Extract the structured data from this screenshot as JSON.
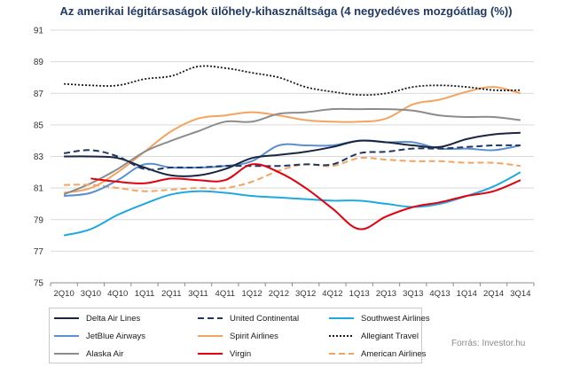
{
  "chart_data": {
    "type": "line",
    "title": "Az amerikai légitársaságok ülőhely-kihasználtsága (4 negyedéves mozgóátlag (%))",
    "xlabel": "",
    "ylabel": "",
    "ylim": [
      75,
      91
    ],
    "yticks": [
      75,
      77,
      79,
      81,
      83,
      85,
      87,
      89,
      91
    ],
    "grid": "horizontal",
    "legend_position": "bottom",
    "categories": [
      "2Q10",
      "3Q10",
      "4Q10",
      "1Q11",
      "2Q11",
      "3Q11",
      "4Q11",
      "1Q12",
      "2Q12",
      "3Q12",
      "4Q12",
      "1Q13",
      "2Q13",
      "3Q13",
      "4Q13",
      "1Q14",
      "2Q14",
      "3Q14"
    ],
    "series": [
      {
        "name": "Delta Air Lines",
        "color": "#1a2540",
        "dash": "solid",
        "values": [
          83.0,
          83.0,
          82.9,
          82.3,
          81.8,
          81.8,
          82.2,
          82.9,
          83.1,
          83.3,
          83.6,
          84.0,
          83.9,
          83.7,
          83.6,
          84.1,
          84.4,
          84.5
        ]
      },
      {
        "name": "United Continental",
        "color": "#1f3864",
        "dash": "dashed",
        "values": [
          83.2,
          83.4,
          83.0,
          82.2,
          82.3,
          82.3,
          82.4,
          82.4,
          82.4,
          82.5,
          82.5,
          83.2,
          83.3,
          83.5,
          83.5,
          83.6,
          83.7,
          83.7
        ]
      },
      {
        "name": "Southwest Airlines",
        "color": "#1fa9de",
        "dash": "solid",
        "values": [
          78.0,
          78.4,
          79.3,
          80.0,
          80.6,
          80.8,
          80.7,
          80.5,
          80.4,
          80.3,
          80.2,
          80.2,
          80.0,
          79.8,
          80.0,
          80.5,
          81.1,
          82.0
        ]
      },
      {
        "name": "JetBlue Airways",
        "color": "#5b8fd0",
        "dash": "solid",
        "values": [
          80.5,
          80.7,
          81.5,
          82.5,
          82.3,
          82.3,
          82.4,
          82.7,
          83.7,
          83.7,
          83.7,
          84.0,
          83.9,
          83.9,
          83.5,
          83.5,
          83.4,
          83.7
        ]
      },
      {
        "name": "Spirit Airlines",
        "color": "#f4a460",
        "dash": "solid",
        "values": [
          80.7,
          81.0,
          82.0,
          83.3,
          84.6,
          85.4,
          85.6,
          85.8,
          85.6,
          85.3,
          85.2,
          85.2,
          85.4,
          86.3,
          86.6,
          87.1,
          87.4,
          87.0
        ]
      },
      {
        "name": "Allegiant Travel",
        "color": "#1a1a1a",
        "dash": "dotted",
        "values": [
          87.6,
          87.5,
          87.5,
          87.9,
          88.1,
          88.7,
          88.6,
          88.3,
          88.0,
          87.4,
          87.1,
          86.9,
          87.0,
          87.4,
          87.5,
          87.4,
          87.2,
          87.2
        ]
      },
      {
        "name": "Alaska Air",
        "color": "#8c8c8c",
        "dash": "solid",
        "values": [
          80.6,
          81.3,
          82.2,
          83.3,
          84.0,
          84.6,
          85.2,
          85.2,
          85.7,
          85.8,
          86.0,
          86.0,
          86.0,
          85.9,
          85.6,
          85.5,
          85.5,
          85.3
        ]
      },
      {
        "name": "Virgin",
        "color": "#e3000f",
        "dash": "solid",
        "values": [
          null,
          81.6,
          81.4,
          81.3,
          81.6,
          81.5,
          81.5,
          82.5,
          82.0,
          81.0,
          79.7,
          78.4,
          79.2,
          79.8,
          80.1,
          80.5,
          80.8,
          81.5
        ]
      },
      {
        "name": "American Airlines",
        "color": "#f4a460",
        "dash": "dashed",
        "values": [
          81.2,
          81.2,
          81.0,
          80.8,
          80.9,
          81.0,
          81.0,
          81.4,
          82.1,
          82.5,
          82.4,
          82.9,
          82.8,
          82.7,
          82.7,
          82.6,
          82.6,
          82.4
        ]
      }
    ]
  },
  "source": "Forrás: Investor.hu"
}
